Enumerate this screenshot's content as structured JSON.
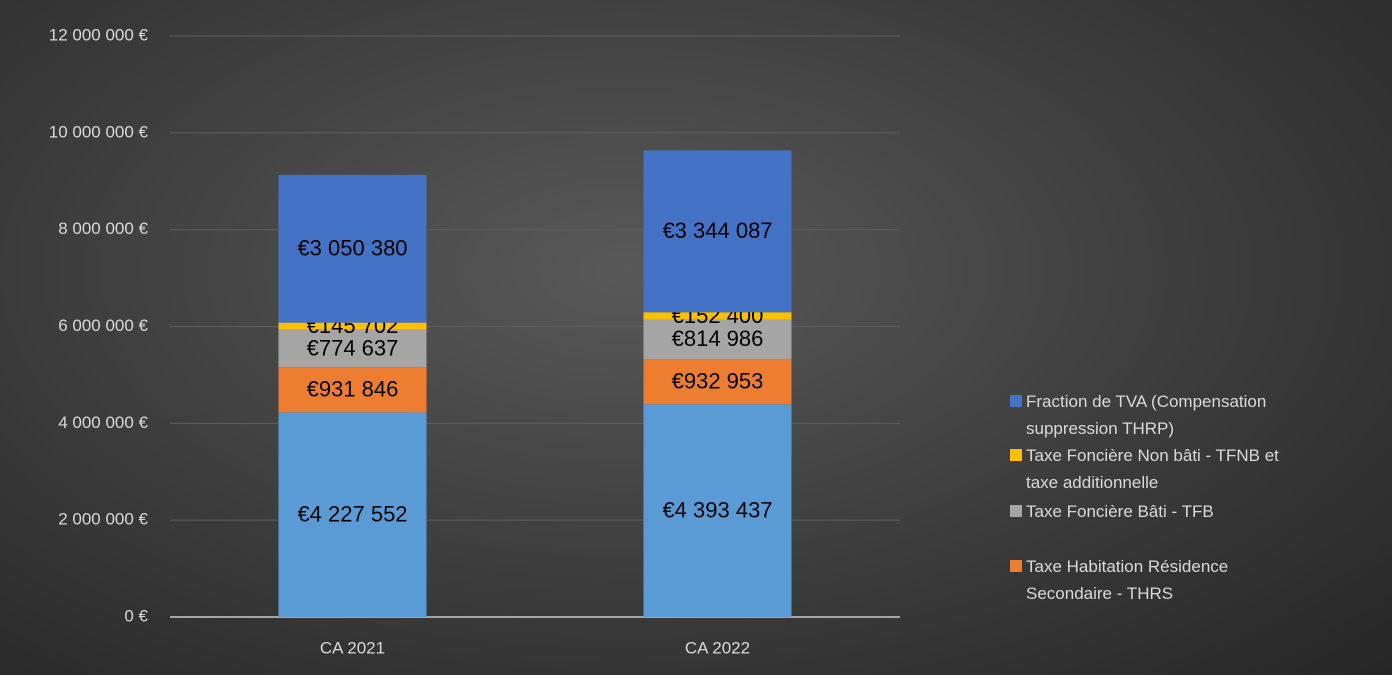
{
  "chart_data": {
    "type": "stacked_bar",
    "categories": [
      "CA 2021",
      "CA 2022"
    ],
    "series": [
      {
        "color": "#5b9bd5",
        "values": [
          4227552,
          4393437
        ],
        "value_labels": [
          "€4 227 552",
          "€4 393 437"
        ]
      },
      {
        "name": "Taxe Habitation Résidence Secondaire - THRS",
        "color": "#ed7d31",
        "values": [
          931846,
          932953
        ],
        "value_labels": [
          "€931 846",
          "€932 953"
        ]
      },
      {
        "name": "Taxe Foncière Bâti - TFB",
        "color": "#a5a5a5",
        "values": [
          774637,
          814986
        ],
        "value_labels": [
          "€774 637",
          "€814 986"
        ]
      },
      {
        "name": "Taxe Foncière Non bâti - TFNB et taxe additionnelle",
        "color": "#ffc000",
        "values": [
          145702,
          152400
        ],
        "value_labels": [
          "€145 702",
          "€152 400"
        ]
      },
      {
        "name": "Fraction de TVA (Compensation suppression THRP)",
        "color": "#4472c4",
        "values": [
          3050380,
          3344087
        ],
        "value_labels": [
          "€3 050 380",
          "€3 344 087"
        ]
      }
    ],
    "ylim": [
      0,
      12000000
    ],
    "yticks": [
      {
        "value": 0,
        "label": "0 €"
      },
      {
        "value": 2000000,
        "label": "2 000 000 €"
      },
      {
        "value": 4000000,
        "label": "4 000 000 €"
      },
      {
        "value": 6000000,
        "label": "6 000 000 €"
      },
      {
        "value": 8000000,
        "label": "8 000 000 €"
      },
      {
        "value": 10000000,
        "label": "10 000 000 €"
      },
      {
        "value": 12000000,
        "label": "12 000 000 €"
      }
    ],
    "grid": true,
    "legend": "right"
  }
}
